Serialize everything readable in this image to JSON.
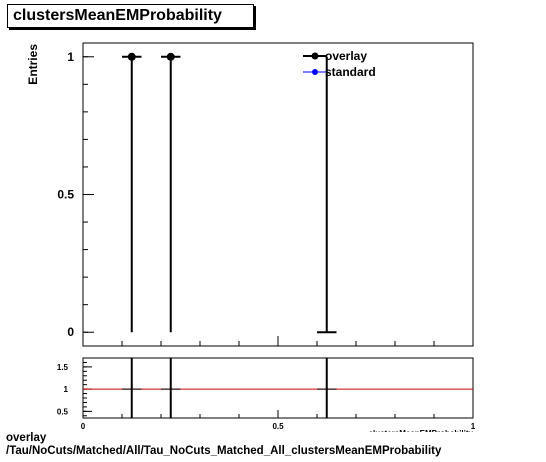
{
  "title": "clustersMeanEMProbability",
  "footer": {
    "line1": "overlay",
    "line2": "/Tau/NoCuts/Matched/All/Tau_NoCuts_Matched_All_clustersMeanEMProbability"
  },
  "chart_data": [
    {
      "type": "scatter",
      "panel": "main",
      "ylabel": "Entries",
      "xlim": [
        0,
        1
      ],
      "ylim": [
        -0.05,
        1.05
      ],
      "yticks": [
        0,
        0.5,
        1
      ],
      "ytick_labels": [
        "0",
        "0.5",
        "1"
      ],
      "legend_position": "top-right",
      "series": [
        {
          "name": "overlay",
          "color": "#000000",
          "points": [
            {
              "x": 0.125,
              "y": 1,
              "xerr": 0.025
            },
            {
              "x": 0.225,
              "y": 1,
              "xerr": 0.025
            },
            {
              "x": 0.625,
              "y": 0,
              "xerr": 0.025
            }
          ]
        },
        {
          "name": "standard",
          "color": "#0000ff",
          "points": []
        }
      ],
      "vertical_lines_x": [
        0.125,
        0.225,
        0.625
      ]
    },
    {
      "type": "line",
      "panel": "ratio",
      "xlabel": "clustersMeanEMProbability",
      "xlim": [
        0,
        1
      ],
      "ylim": [
        0.35,
        1.7
      ],
      "xticks": [
        0,
        0.5,
        1
      ],
      "xtick_labels": [
        "0",
        "0.5",
        "1"
      ],
      "yticks": [
        0.5,
        1,
        1.5
      ],
      "ytick_labels": [
        "0.5",
        "1",
        "1.5"
      ],
      "reference_line": {
        "y": 1,
        "color": "#cc0000"
      },
      "points": [
        {
          "x": 0.125,
          "y": 1,
          "xerr": 0.025
        },
        {
          "x": 0.225,
          "y": 1,
          "xerr": 0.025
        },
        {
          "x": 0.625,
          "y": 1,
          "xerr": 0.025
        }
      ],
      "vertical_lines_x": [
        0.125,
        0.225,
        0.625
      ]
    }
  ]
}
